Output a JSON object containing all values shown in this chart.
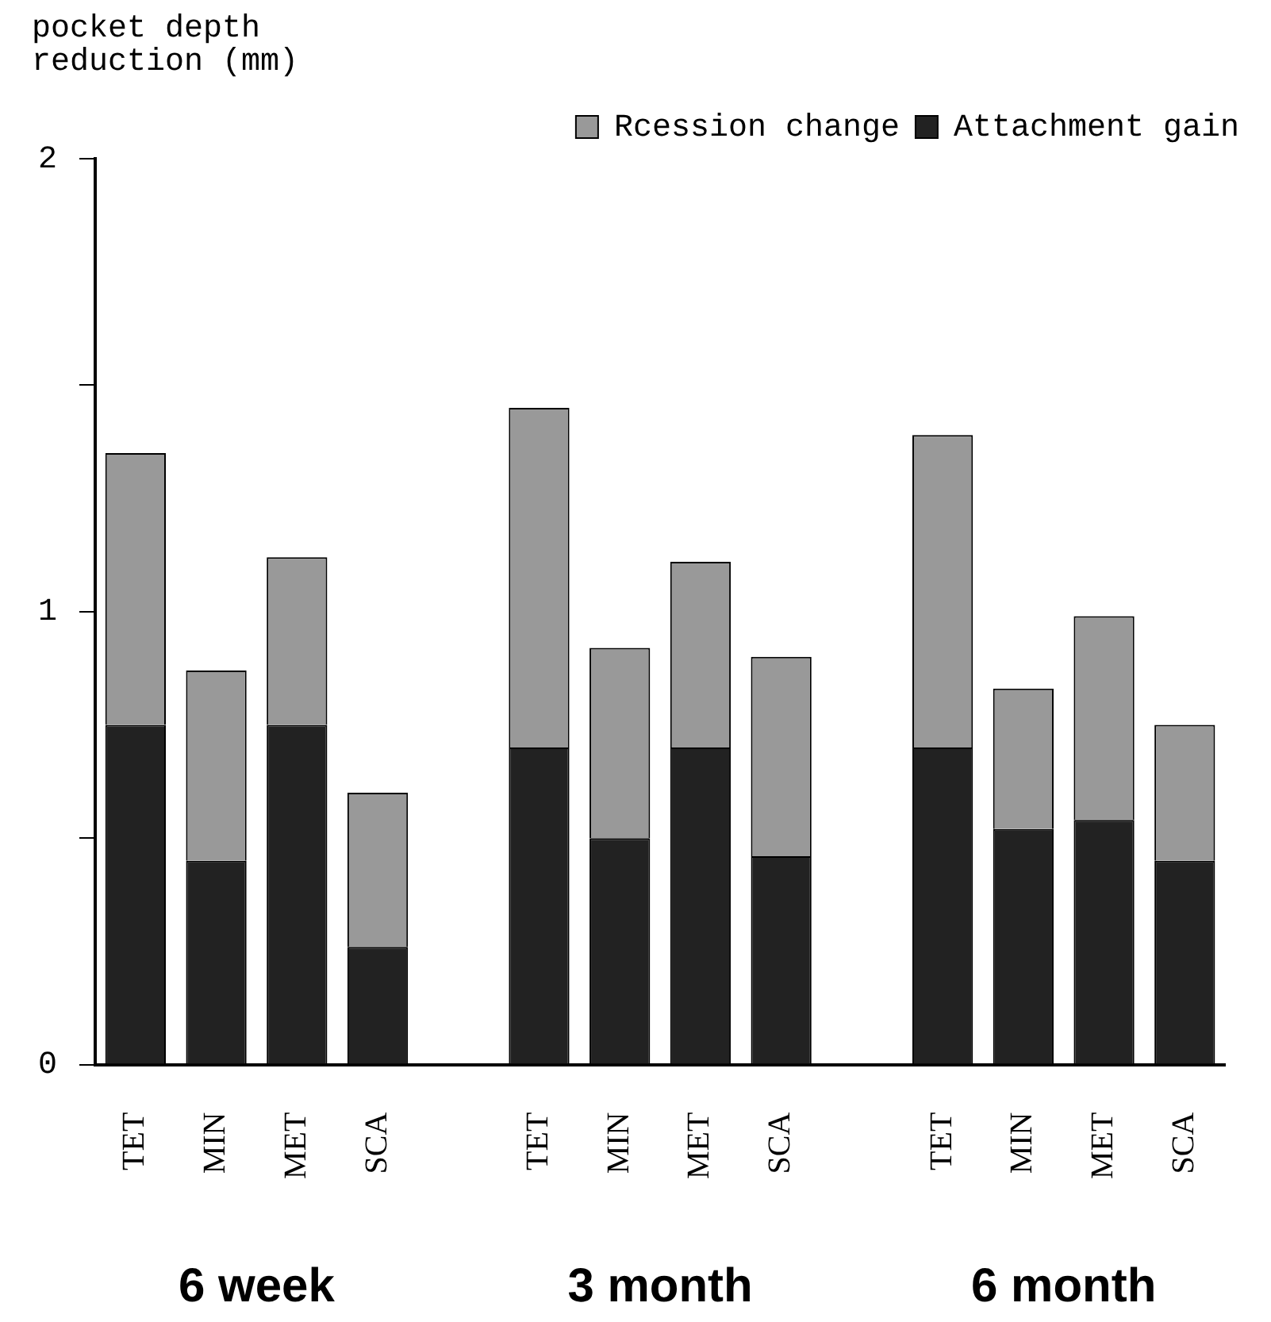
{
  "chart_data": {
    "type": "bar",
    "stacked": true,
    "ylabel": "pocket depth reduction (mm)",
    "categories": [
      "TET",
      "MIN",
      "MET",
      "SCA",
      null,
      "TET",
      "MIN",
      "MET",
      "SCA",
      null,
      "TET",
      "MIN",
      "MET",
      "SCA"
    ],
    "series": [
      {
        "name": "Attachment gain",
        "color": "#222222",
        "values": [
          0.75,
          0.45,
          0.75,
          0.26,
          null,
          0.7,
          0.5,
          0.7,
          0.46,
          null,
          0.7,
          0.52,
          0.54,
          0.45
        ]
      },
      {
        "name": "Rcession change",
        "color": "#999999",
        "values": [
          0.6,
          0.42,
          0.37,
          0.34,
          null,
          0.75,
          0.42,
          0.41,
          0.44,
          null,
          0.69,
          0.31,
          0.45,
          0.3
        ]
      }
    ],
    "ylim": [
      0,
      2
    ],
    "yticks": [
      0,
      {
        "value": 0.5,
        "label": null
      },
      1,
      {
        "value": 1.5,
        "label": null
      },
      2
    ],
    "grid": false,
    "legend": "top right",
    "annotations": [
      "6 week",
      "3 month",
      "6 month"
    ]
  }
}
